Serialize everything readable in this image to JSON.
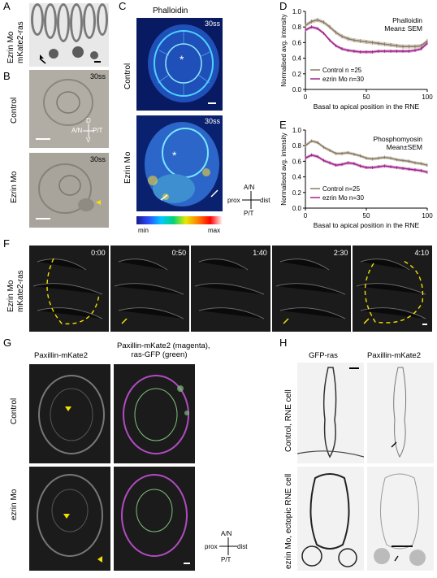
{
  "panels": {
    "A": {
      "letter": "A",
      "label": "Ezrin Mo\nmKate2-ras"
    },
    "B": {
      "letter": "B",
      "row1": "Control",
      "row2": "Ezrin Mo",
      "stage": "30ss",
      "axes": {
        "d": "D",
        "v": "V",
        "an": "A/N",
        "pt": "P/T"
      }
    },
    "C": {
      "letter": "C",
      "title": "Phalloidin",
      "row1": "Control",
      "row2": "Ezrin Mo",
      "stage": "30ss",
      "axes": {
        "an": "A/N",
        "pt": "P/T",
        "prox": "prox",
        "dist": "dist"
      },
      "colorbar": {
        "min": "min",
        "max": "max"
      }
    },
    "F": {
      "letter": "F",
      "label": "Ezrin Mo\nmKate2-ras",
      "times": [
        "0:00",
        "0:50",
        "1:40",
        "2:30",
        "4:10"
      ]
    },
    "G": {
      "letter": "G",
      "col1": "Paxillin-mKate2",
      "col2": "Paxillin-mKate2 (magenta),\nras-GFP (green)",
      "row1": "Control",
      "row2": "ezrin Mo",
      "axes": {
        "an": "A/N",
        "pt": "P/T",
        "prox": "prox",
        "dist": "dist"
      }
    },
    "H": {
      "letter": "H",
      "col1": "GFP-ras",
      "col2": "Paxillin-mKate2",
      "row1": "Control, RNE cell",
      "row2": "ezrin Mo, ectopic RNE cell"
    }
  },
  "chart_data": [
    {
      "panel": "D",
      "type": "line",
      "title": "Phalloidin\nMean± SEM",
      "xlabel": "Basal to apical position in the RNE",
      "ylabel": "Normalised avg. intensity",
      "xlim": [
        0,
        100
      ],
      "ylim": [
        0.0,
        1.0
      ],
      "xticks": [
        0,
        50,
        100
      ],
      "yticks": [
        0.0,
        0.2,
        0.4,
        0.6,
        0.8,
        1.0
      ],
      "legend_position": "bottom-left",
      "series": [
        {
          "name": "Control n =25",
          "color": "#8a7a62",
          "x": [
            0,
            5,
            10,
            15,
            20,
            25,
            30,
            35,
            40,
            45,
            50,
            55,
            60,
            65,
            70,
            75,
            80,
            85,
            90,
            95,
            100
          ],
          "y": [
            0.82,
            0.87,
            0.89,
            0.86,
            0.8,
            0.73,
            0.68,
            0.65,
            0.63,
            0.62,
            0.61,
            0.6,
            0.59,
            0.58,
            0.57,
            0.56,
            0.55,
            0.55,
            0.55,
            0.56,
            0.62
          ],
          "sem": 0.025
        },
        {
          "name": "ezrin Mo n=30",
          "color": "#a0228a",
          "x": [
            0,
            5,
            10,
            15,
            20,
            25,
            30,
            35,
            40,
            45,
            50,
            55,
            60,
            65,
            70,
            75,
            80,
            85,
            90,
            95,
            100
          ],
          "y": [
            0.76,
            0.8,
            0.78,
            0.72,
            0.63,
            0.56,
            0.52,
            0.5,
            0.49,
            0.48,
            0.48,
            0.48,
            0.49,
            0.49,
            0.49,
            0.49,
            0.49,
            0.49,
            0.5,
            0.52,
            0.59
          ],
          "sem": 0.02
        }
      ]
    },
    {
      "panel": "E",
      "type": "line",
      "title": "Phosphomyosin\nMean±SEM",
      "xlabel": "Basal to apical position in the RNE",
      "ylabel": "Normalised avg. intensity",
      "xlim": [
        0,
        100
      ],
      "ylim": [
        0.0,
        1.0
      ],
      "xticks": [
        0,
        50,
        100
      ],
      "yticks": [
        0.0,
        0.2,
        0.4,
        0.6,
        0.8,
        1.0
      ],
      "legend_position": "bottom-left",
      "series": [
        {
          "name": "Control n=25",
          "color": "#8a7a62",
          "x": [
            0,
            5,
            10,
            15,
            20,
            25,
            30,
            35,
            40,
            45,
            50,
            55,
            60,
            65,
            70,
            75,
            80,
            85,
            90,
            95,
            100
          ],
          "y": [
            0.8,
            0.86,
            0.84,
            0.78,
            0.74,
            0.7,
            0.7,
            0.71,
            0.69,
            0.67,
            0.64,
            0.63,
            0.64,
            0.65,
            0.64,
            0.62,
            0.61,
            0.6,
            0.58,
            0.57,
            0.55
          ],
          "sem": 0.02
        },
        {
          "name": "ezrin Mo n=30",
          "color": "#a0228a",
          "x": [
            0,
            5,
            10,
            15,
            20,
            25,
            30,
            35,
            40,
            45,
            50,
            55,
            60,
            65,
            70,
            75,
            80,
            85,
            90,
            95,
            100
          ],
          "y": [
            0.64,
            0.68,
            0.66,
            0.61,
            0.58,
            0.55,
            0.56,
            0.58,
            0.57,
            0.54,
            0.52,
            0.52,
            0.53,
            0.54,
            0.53,
            0.52,
            0.51,
            0.5,
            0.49,
            0.48,
            0.46
          ],
          "sem": 0.02
        }
      ]
    }
  ]
}
